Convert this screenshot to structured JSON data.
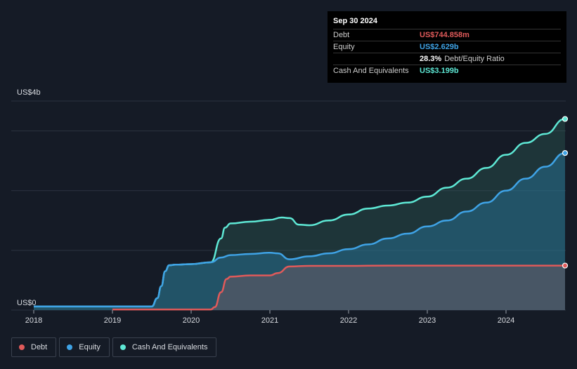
{
  "tooltip": {
    "date": "Sep 30 2024",
    "rows": [
      {
        "label": "Debt",
        "value": "US$744.858m",
        "color": "#e05a5a"
      },
      {
        "label": "Equity",
        "value": "US$2.629b",
        "color": "#3fa3e6"
      },
      {
        "label": "",
        "value": "28.3%",
        "suffix": "Debt/Equity Ratio",
        "color": "#ffffff"
      },
      {
        "label": "Cash And Equivalents",
        "value": "US$3.199b",
        "color": "#5ee8d5"
      }
    ]
  },
  "legend": [
    {
      "label": "Debt",
      "color": "#e05a5a"
    },
    {
      "label": "Equity",
      "color": "#3fa3e6"
    },
    {
      "label": "Cash And Equivalents",
      "color": "#5ee8d5"
    }
  ],
  "chart_data": {
    "type": "area",
    "y_top_label": "US$4b",
    "y_bottom_label": "US$0",
    "ylim": [
      0,
      3.5
    ],
    "xlim": [
      2018,
      2024.75
    ],
    "x_ticks": [
      "2018",
      "2019",
      "2020",
      "2021",
      "2022",
      "2023",
      "2024"
    ],
    "x_tick_values": [
      2018,
      2019,
      2020,
      2021,
      2022,
      2023,
      2024
    ],
    "grid": true,
    "series": [
      {
        "name": "Cash And Equivalents",
        "color": "#5ee8d5",
        "x": [
          2018.0,
          2019.0,
          2019.5,
          2019.57,
          2019.62,
          2019.67,
          2019.72,
          2019.8,
          2020.0,
          2020.25,
          2020.38,
          2020.43,
          2020.5,
          2020.75,
          2021.0,
          2021.15,
          2021.25,
          2021.37,
          2021.5,
          2021.75,
          2022.0,
          2022.25,
          2022.5,
          2022.75,
          2023.0,
          2023.25,
          2023.5,
          2023.75,
          2024.0,
          2024.25,
          2024.5,
          2024.75
        ],
        "y": [
          0.06,
          0.06,
          0.06,
          0.2,
          0.4,
          0.65,
          0.75,
          0.76,
          0.77,
          0.8,
          1.2,
          1.38,
          1.45,
          1.48,
          1.51,
          1.55,
          1.54,
          1.43,
          1.42,
          1.5,
          1.6,
          1.7,
          1.75,
          1.8,
          1.9,
          2.05,
          2.2,
          2.38,
          2.6,
          2.8,
          2.95,
          3.2
        ]
      },
      {
        "name": "Equity",
        "color": "#3fa3e6",
        "x": [
          2018.0,
          2019.0,
          2019.5,
          2019.57,
          2019.62,
          2019.67,
          2019.72,
          2019.8,
          2020.0,
          2020.25,
          2020.38,
          2020.5,
          2020.75,
          2021.0,
          2021.1,
          2021.25,
          2021.5,
          2021.75,
          2022.0,
          2022.25,
          2022.5,
          2022.75,
          2023.0,
          2023.25,
          2023.5,
          2023.75,
          2024.0,
          2024.25,
          2024.5,
          2024.75
        ],
        "y": [
          0.06,
          0.06,
          0.06,
          0.2,
          0.4,
          0.65,
          0.75,
          0.76,
          0.77,
          0.8,
          0.88,
          0.92,
          0.94,
          0.96,
          0.95,
          0.85,
          0.9,
          0.95,
          1.02,
          1.1,
          1.2,
          1.28,
          1.4,
          1.5,
          1.65,
          1.8,
          2.0,
          2.2,
          2.4,
          2.63
        ]
      },
      {
        "name": "Debt",
        "color": "#e05a5a",
        "x": [
          2019.0,
          2020.25,
          2020.3,
          2020.38,
          2020.45,
          2020.5,
          2020.75,
          2021.0,
          2021.1,
          2021.25,
          2021.5,
          2022.0,
          2022.5,
          2023.0,
          2023.5,
          2024.0,
          2024.5,
          2024.75
        ],
        "y": [
          0.01,
          0.01,
          0.05,
          0.3,
          0.52,
          0.56,
          0.58,
          0.58,
          0.62,
          0.73,
          0.74,
          0.74,
          0.745,
          0.745,
          0.745,
          0.745,
          0.745,
          0.745
        ]
      }
    ]
  }
}
